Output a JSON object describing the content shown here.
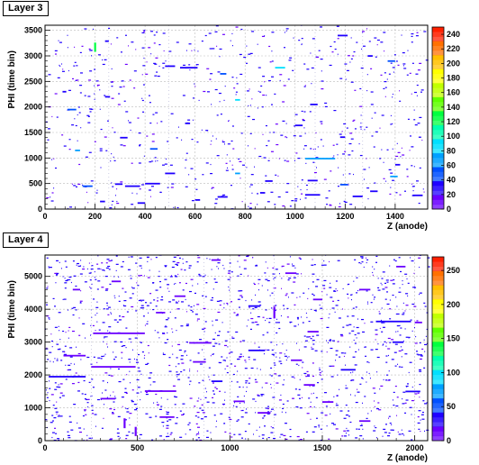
{
  "panels": [
    {
      "label": "Layer 3"
    },
    {
      "label": "Layer 4"
    }
  ],
  "chart_data": [
    {
      "type": "heatmap",
      "title": "Layer 3",
      "xlabel": "Z (anode)",
      "ylabel": "PHI (time bin)",
      "xlim": [
        0,
        1530
      ],
      "ylim": [
        0,
        3600
      ],
      "xticks": [
        0,
        200,
        400,
        600,
        800,
        1000,
        1200,
        1400
      ],
      "yticks": [
        0,
        500,
        1000,
        1500,
        2000,
        2500,
        3000,
        3500
      ],
      "zlim": [
        0,
        250
      ],
      "colorbar_ticks": [
        0,
        20,
        40,
        60,
        80,
        100,
        120,
        140,
        160,
        180,
        200,
        220,
        240
      ],
      "grid": true,
      "colorbar": "right",
      "colors": [
        "#6a00ff",
        "#1f00ff",
        "#0050ff",
        "#00a0ff",
        "#00e0ff",
        "#00ffb0",
        "#00ff40",
        "#60ff00",
        "#c0ff00",
        "#ffff00",
        "#ffc000",
        "#ff7000",
        "#ff2000"
      ],
      "segments": [
        {
          "z": 200,
          "phi": 3080,
          "len": 0,
          "v": 120,
          "vlen": 180
        },
        {
          "z": 240,
          "phi": 3290,
          "len": 15,
          "v": 30
        },
        {
          "z": 480,
          "phi": 2800,
          "len": 40,
          "v": 20
        },
        {
          "z": 540,
          "phi": 2770,
          "len": 70,
          "v": 30
        },
        {
          "z": 700,
          "phi": 2650,
          "len": 25,
          "v": 50
        },
        {
          "z": 760,
          "phi": 2140,
          "len": 20,
          "v": 80
        },
        {
          "z": 920,
          "phi": 2770,
          "len": 40,
          "v": 80
        },
        {
          "z": 1060,
          "phi": 2050,
          "len": 30,
          "v": 20
        },
        {
          "z": 1370,
          "phi": 2900,
          "len": 30,
          "v": 40
        },
        {
          "z": 1170,
          "phi": 3400,
          "len": 40,
          "v": 20
        },
        {
          "z": 90,
          "phi": 1950,
          "len": 35,
          "v": 40
        },
        {
          "z": 120,
          "phi": 1150,
          "len": 20,
          "v": 60
        },
        {
          "z": 300,
          "phi": 1400,
          "len": 30,
          "v": 20
        },
        {
          "z": 420,
          "phi": 1180,
          "len": 30,
          "v": 40
        },
        {
          "z": 560,
          "phi": 1680,
          "len": 20,
          "v": 30
        },
        {
          "z": 1040,
          "phi": 990,
          "len": 120,
          "v": 60
        },
        {
          "z": 1000,
          "phi": 1640,
          "len": 30,
          "v": 30
        },
        {
          "z": 1180,
          "phi": 1410,
          "len": 20,
          "v": 20
        },
        {
          "z": 1380,
          "phi": 640,
          "len": 30,
          "v": 60
        },
        {
          "z": 1400,
          "phi": 870,
          "len": 20,
          "v": 30
        },
        {
          "z": 280,
          "phi": 490,
          "len": 30,
          "v": 20
        },
        {
          "z": 320,
          "phi": 450,
          "len": 60,
          "v": 20
        },
        {
          "z": 400,
          "phi": 500,
          "len": 60,
          "v": 30
        },
        {
          "z": 480,
          "phi": 700,
          "len": 40,
          "v": 30
        },
        {
          "z": 150,
          "phi": 450,
          "len": 40,
          "v": 40
        },
        {
          "z": 600,
          "phi": 180,
          "len": 20,
          "v": 30
        },
        {
          "z": 690,
          "phi": 240,
          "len": 40,
          "v": 20
        },
        {
          "z": 760,
          "phi": 700,
          "len": 20,
          "v": 60
        },
        {
          "z": 880,
          "phi": 550,
          "len": 30,
          "v": 20
        },
        {
          "z": 1050,
          "phi": 560,
          "len": 40,
          "v": 30
        },
        {
          "z": 1180,
          "phi": 480,
          "len": 30,
          "v": 40
        },
        {
          "z": 1300,
          "phi": 350,
          "len": 30,
          "v": 20
        },
        {
          "z": 1040,
          "phi": 280,
          "len": 60,
          "v": 20
        },
        {
          "z": 1230,
          "phi": 250,
          "len": 40,
          "v": 20
        },
        {
          "z": 1470,
          "phi": 270,
          "len": 40,
          "v": 30
        },
        {
          "z": 220,
          "phi": 150,
          "len": 20,
          "v": 20
        },
        {
          "z": 370,
          "phi": 120,
          "len": 30,
          "v": 20
        },
        {
          "z": 860,
          "phi": 320,
          "len": 20,
          "v": 20
        },
        {
          "z": 70,
          "phi": 2300,
          "len": 15,
          "v": 20
        },
        {
          "z": 240,
          "phi": 2200,
          "len": 20,
          "v": 30
        },
        {
          "z": 1290,
          "phi": 3000,
          "len": 20,
          "v": 20
        }
      ]
    },
    {
      "type": "heatmap",
      "title": "Layer 4",
      "xlabel": "Z (anode)",
      "ylabel": "PHI (time bin)",
      "xlim": [
        0,
        2070
      ],
      "ylim": [
        0,
        5650
      ],
      "xticks": [
        0,
        500,
        1000,
        1500,
        2000
      ],
      "yticks": [
        0,
        1000,
        2000,
        3000,
        4000,
        5000
      ],
      "zlim": [
        0,
        270
      ],
      "colorbar_ticks": [
        0,
        50,
        100,
        150,
        200,
        250
      ],
      "grid": true,
      "colorbar": "right",
      "colors": [
        "#6a00ff",
        "#1f00ff",
        "#0050ff",
        "#00a0ff",
        "#00e0ff",
        "#00ffb0",
        "#00ff40",
        "#60ff00",
        "#c0ff00",
        "#ffff00",
        "#ffc000",
        "#ff7000",
        "#ff2000"
      ],
      "segments": [
        {
          "z": 260,
          "phi": 3270,
          "len": 280,
          "v": 20
        },
        {
          "z": 250,
          "phi": 2250,
          "len": 240,
          "v": 20
        },
        {
          "z": 100,
          "phi": 2590,
          "len": 120,
          "v": 20
        },
        {
          "z": 20,
          "phi": 1950,
          "len": 200,
          "v": 30
        },
        {
          "z": 1790,
          "phi": 3630,
          "len": 190,
          "v": 40
        },
        {
          "z": 1240,
          "phi": 3720,
          "len": 0,
          "v": 20,
          "vlen": 350
        },
        {
          "z": 430,
          "phi": 380,
          "len": 0,
          "v": 20,
          "vlen": 300
        },
        {
          "z": 490,
          "phi": 140,
          "len": 0,
          "v": 20,
          "vlen": 280
        },
        {
          "z": 540,
          "phi": 1510,
          "len": 170,
          "v": 20
        },
        {
          "z": 620,
          "phi": 720,
          "len": 80,
          "v": 20
        },
        {
          "z": 300,
          "phi": 1280,
          "len": 80,
          "v": 20
        },
        {
          "z": 780,
          "phi": 2980,
          "len": 120,
          "v": 20
        },
        {
          "z": 900,
          "phi": 1810,
          "len": 60,
          "v": 30
        },
        {
          "z": 1100,
          "phi": 2750,
          "len": 90,
          "v": 30
        },
        {
          "z": 1420,
          "phi": 3320,
          "len": 60,
          "v": 20
        },
        {
          "z": 1330,
          "phi": 2450,
          "len": 60,
          "v": 20
        },
        {
          "z": 1600,
          "phi": 2160,
          "len": 80,
          "v": 30
        },
        {
          "z": 1500,
          "phi": 1180,
          "len": 60,
          "v": 20
        },
        {
          "z": 1880,
          "phi": 3000,
          "len": 60,
          "v": 30
        },
        {
          "z": 1700,
          "phi": 4600,
          "len": 60,
          "v": 20
        },
        {
          "z": 700,
          "phi": 4400,
          "len": 60,
          "v": 20
        },
        {
          "z": 1300,
          "phi": 5100,
          "len": 60,
          "v": 20
        },
        {
          "z": 150,
          "phi": 4600,
          "len": 40,
          "v": 20
        },
        {
          "z": 900,
          "phi": 5500,
          "len": 50,
          "v": 20
        },
        {
          "z": 1100,
          "phi": 4100,
          "len": 60,
          "v": 30
        },
        {
          "z": 360,
          "phi": 4850,
          "len": 50,
          "v": 20
        },
        {
          "z": 1900,
          "phi": 5300,
          "len": 50,
          "v": 20
        },
        {
          "z": 1950,
          "phi": 1500,
          "len": 80,
          "v": 30
        },
        {
          "z": 1150,
          "phi": 850,
          "len": 70,
          "v": 20
        },
        {
          "z": 1700,
          "phi": 600,
          "len": 60,
          "v": 20
        },
        {
          "z": 600,
          "phi": 3900,
          "len": 50,
          "v": 20
        },
        {
          "z": 1450,
          "phi": 4300,
          "len": 50,
          "v": 20
        },
        {
          "z": 800,
          "phi": 2400,
          "len": 70,
          "v": 20
        },
        {
          "z": 1020,
          "phi": 1200,
          "len": 60,
          "v": 20
        },
        {
          "z": 1400,
          "phi": 1700,
          "len": 60,
          "v": 20
        },
        {
          "z": 2000,
          "phi": 3600,
          "len": 40,
          "v": 20
        }
      ]
    }
  ]
}
